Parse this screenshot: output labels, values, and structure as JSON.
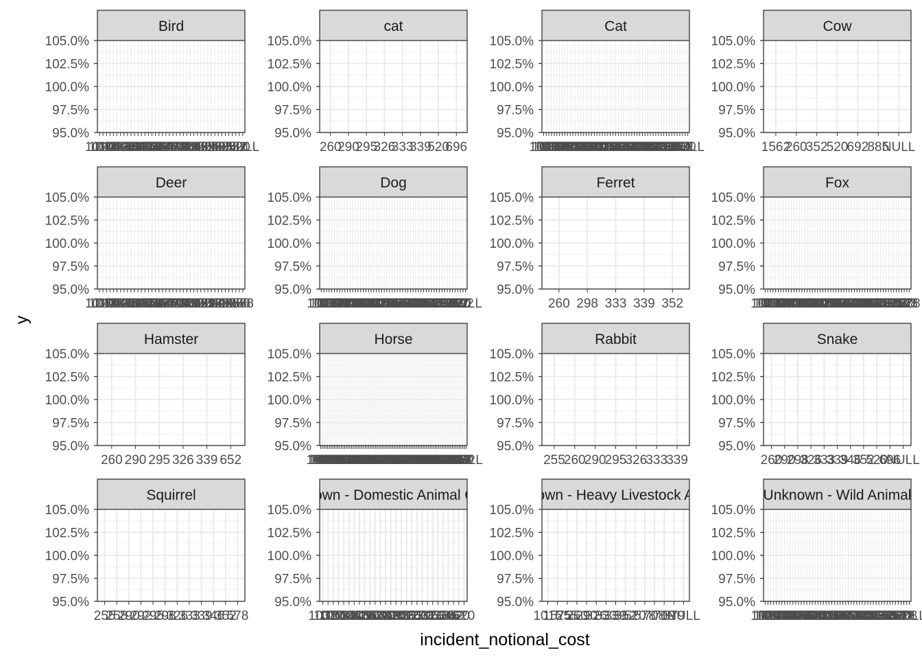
{
  "chart_data": {
    "type": "scatter",
    "layout": "facet_wrap",
    "xlabel": "incident_notional_cost",
    "ylabel": "y",
    "ylim": [
      0.95,
      1.05
    ],
    "y_ticks": [
      "95.0%",
      "97.5%",
      "100.0%",
      "102.5%",
      "105.0%"
    ],
    "y_values": [
      0.95,
      0.975,
      1.0,
      1.025,
      1.05
    ],
    "panels": [
      {
        "name": "Bird",
        "x_ticks": [
          "1014",
          "1044",
          "1104",
          "1128",
          "1160",
          "1184",
          "1220",
          "1236",
          "1260",
          "1288",
          "1316",
          "1340",
          "1376",
          "1404",
          "1440",
          "1476",
          "1512",
          "1544",
          "1576",
          "1604",
          "1640",
          "1672",
          "1704",
          "1740",
          "1772",
          "1804",
          "1836",
          "1868",
          "1900",
          "1932",
          "1964",
          "1996",
          "255",
          "260",
          "290",
          "295",
          "326",
          "333",
          "339",
          "352",
          "520",
          "NULL"
        ]
      },
      {
        "name": "cat",
        "x_ticks": [
          "260",
          "290",
          "295",
          "326",
          "333",
          "339",
          "520",
          "696"
        ]
      },
      {
        "name": "Cat",
        "x_ticks": [
          "1000",
          "1014",
          "1038",
          "1044",
          "1070",
          "1104",
          "1128",
          "1150",
          "1160",
          "1184",
          "1200",
          "1220",
          "1236",
          "1248",
          "1260",
          "1288",
          "1300",
          "1316",
          "1340",
          "1360",
          "1376",
          "1404",
          "1420",
          "1440",
          "1476",
          "1490",
          "1512",
          "1544",
          "1560",
          "1576",
          "1604",
          "1640",
          "1672",
          "1704",
          "1740",
          "1772",
          "1804",
          "1836",
          "1868",
          "1900",
          "1932",
          "1964",
          "1996",
          "2060",
          "2120",
          "255",
          "260",
          "290",
          "295",
          "326",
          "333",
          "339",
          "352",
          "520",
          "NULL"
        ]
      },
      {
        "name": "Cow",
        "x_ticks": [
          "1562",
          "260",
          "352",
          "520",
          "692",
          "885",
          "NULL"
        ]
      },
      {
        "name": "Deer",
        "x_ticks": [
          "1014",
          "1044",
          "1104",
          "1128",
          "1160",
          "1184",
          "1220",
          "1236",
          "1260",
          "1288",
          "1316",
          "1340",
          "1376",
          "1404",
          "1440",
          "1476",
          "1512",
          "1544",
          "1576",
          "1604",
          "1640",
          "1672",
          "1704",
          "1740",
          "1772",
          "1804",
          "1836",
          "1868",
          "1900",
          "1932",
          "1964",
          "1996",
          "2060",
          "2120",
          "2208",
          "2352",
          "2445",
          "2568",
          "2678",
          "2778",
          "2878",
          "878"
        ]
      },
      {
        "name": "Dog",
        "x_ticks": [
          "1000",
          "1014",
          "1038",
          "1044",
          "1070",
          "1104",
          "1128",
          "1150",
          "1160",
          "1184",
          "1200",
          "1220",
          "1236",
          "1248",
          "1260",
          "1288",
          "1300",
          "1316",
          "1340",
          "1360",
          "1376",
          "1404",
          "1420",
          "1440",
          "1476",
          "1490",
          "1512",
          "1544",
          "1560",
          "1576",
          "1604",
          "1640",
          "1672",
          "1704",
          "1740",
          "1772",
          "1804",
          "1836",
          "1868",
          "1900",
          "1932",
          "1964",
          "1996",
          "2060",
          "2120",
          "255",
          "260",
          "290",
          "295",
          "326",
          "333",
          "339",
          "352",
          "520",
          "692",
          "NULL"
        ]
      },
      {
        "name": "Ferret",
        "x_ticks": [
          "260",
          "298",
          "333",
          "339",
          "352"
        ]
      },
      {
        "name": "Fox",
        "x_ticks": [
          "1000",
          "1014",
          "1038",
          "1044",
          "1070",
          "1104",
          "1128",
          "1150",
          "1160",
          "1184",
          "1200",
          "1220",
          "1236",
          "1248",
          "1260",
          "1288",
          "1300",
          "1316",
          "1340",
          "1360",
          "1376",
          "1404",
          "1420",
          "1440",
          "1476",
          "1490",
          "1512",
          "1544",
          "1560",
          "1576",
          "1604",
          "1640",
          "1672",
          "1704",
          "1740",
          "1772",
          "1804",
          "1836",
          "1868",
          "1900",
          "1932",
          "1964",
          "1996",
          "2060",
          "2120",
          "255",
          "260",
          "290",
          "295",
          "326",
          "333",
          "339",
          "352",
          "520",
          "578",
          "878"
        ]
      },
      {
        "name": "Hamster",
        "x_ticks": [
          "260",
          "290",
          "295",
          "326",
          "339",
          "652"
        ]
      },
      {
        "name": "Horse",
        "x_ticks": [
          "1000",
          "1010",
          "1014",
          "1020",
          "1038",
          "1044",
          "1050",
          "1070",
          "1090",
          "1104",
          "1120",
          "1128",
          "1140",
          "1150",
          "1160",
          "1170",
          "1184",
          "1200",
          "1210",
          "1220",
          "1230",
          "1236",
          "1248",
          "1260",
          "1270",
          "1288",
          "1300",
          "1316",
          "1330",
          "1340",
          "1350",
          "1360",
          "1376",
          "1390",
          "1404",
          "1420",
          "1430",
          "1440",
          "1460",
          "1476",
          "1490",
          "1500",
          "1512",
          "1530",
          "1544",
          "1560",
          "1576",
          "1590",
          "1604",
          "1620",
          "1640",
          "1660",
          "1672",
          "1690",
          "1704",
          "1720",
          "1740",
          "1760",
          "1772",
          "1790",
          "1804",
          "1820",
          "1836",
          "1850",
          "1868",
          "1880",
          "1900",
          "1920",
          "1932",
          "1950",
          "1964",
          "1980",
          "1996",
          "2060",
          "2120",
          "255",
          "260",
          "290",
          "295",
          "326",
          "333",
          "339",
          "352",
          "520",
          "692",
          "NULL"
        ]
      },
      {
        "name": "Rabbit",
        "x_ticks": [
          "255",
          "260",
          "290",
          "295",
          "326",
          "333",
          "339"
        ]
      },
      {
        "name": "Snake",
        "x_ticks": [
          "260",
          "290",
          "298",
          "326",
          "333",
          "339",
          "346",
          "352",
          "520",
          "696",
          "NULL"
        ]
      },
      {
        "name": "Squirrel",
        "x_ticks": [
          "255",
          "258",
          "290",
          "292",
          "295",
          "298",
          "326",
          "333",
          "339",
          "346",
          "352",
          "578"
        ]
      },
      {
        "name": "Unknown - Domestic Animal Or Pet",
        "x_ticks": [
          "1038",
          "1070",
          "1150",
          "1200",
          "1248",
          "1300",
          "1360",
          "1420",
          "1490",
          "1560",
          "1620",
          "1690",
          "1760",
          "1820",
          "1880",
          "1950",
          "2060",
          "255",
          "260",
          "290",
          "295",
          "326",
          "333",
          "339",
          "346",
          "352",
          "520",
          "620"
        ]
      },
      {
        "name": "Unknown - Heavy Livestock Animal",
        "x_ticks": [
          "1015",
          "1575",
          "255",
          "260",
          "290",
          "326",
          "333",
          "339",
          "352",
          "520",
          "578",
          "708",
          "709",
          "879",
          "NULL"
        ]
      },
      {
        "name": "Unknown - Wild Animal",
        "x_ticks": [
          "1000",
          "1014",
          "1038",
          "1044",
          "1070",
          "1104",
          "1128",
          "1150",
          "1160",
          "1184",
          "1200",
          "1220",
          "1236",
          "1248",
          "1260",
          "1288",
          "1300",
          "1316",
          "1340",
          "1360",
          "1376",
          "1404",
          "1420",
          "1440",
          "1476",
          "1490",
          "1512",
          "1544",
          "1560",
          "1576",
          "1604",
          "1640",
          "1672",
          "1704",
          "1740",
          "1772",
          "1804",
          "1836",
          "1868",
          "1900",
          "1932",
          "255",
          "260",
          "290",
          "295",
          "326",
          "333",
          "339",
          "352",
          "520",
          "578",
          "708",
          "NULL"
        ]
      }
    ],
    "points": [],
    "grid": true,
    "theme": "bw",
    "strip_color": "#d9d9d9"
  }
}
